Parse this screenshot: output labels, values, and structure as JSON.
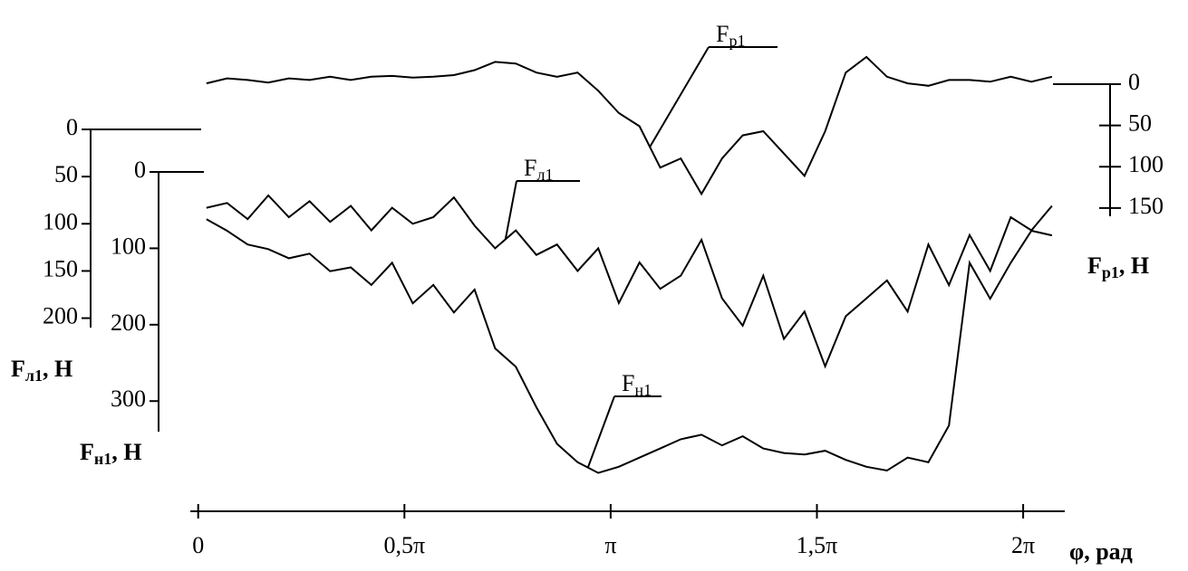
{
  "chart_data": {
    "type": "line",
    "x": [
      0.063,
      0.22,
      0.377,
      0.534,
      0.691,
      0.848,
      1.005,
      1.162,
      1.319,
      1.477,
      1.634,
      1.791,
      1.948,
      2.105,
      2.262,
      2.419,
      2.576,
      2.733,
      2.89,
      3.047,
      3.204,
      3.361,
      3.519,
      3.676,
      3.833,
      3.99,
      4.147,
      4.304,
      4.461,
      4.618,
      4.775,
      4.932,
      5.089,
      5.246,
      5.403,
      5.561,
      5.718,
      5.875,
      6.032,
      6.189,
      6.346,
      6.503
    ],
    "xlim": [
      -0.06,
      6.6
    ],
    "xticks": [
      {
        "value": 0,
        "label": "0"
      },
      {
        "value": 1.5708,
        "label": "0,5π"
      },
      {
        "value": 3.1416,
        "label": "π"
      },
      {
        "value": 4.7124,
        "label": "1,5π"
      },
      {
        "value": 6.2832,
        "label": "2π"
      }
    ],
    "xlabel": "φ, рад",
    "ylabel": "Fл1, Н",
    "ylim": [
      0,
      210
    ],
    "yticks": [
      0,
      50,
      100,
      150,
      200
    ],
    "y2label": "Fр1, Н",
    "y2lim": [
      0,
      160
    ],
    "y2ticks": [
      0,
      50,
      100,
      150
    ],
    "y3label": "Fн1, Н",
    "y3lim": [
      0,
      340
    ],
    "y3ticks": [
      0,
      100,
      200,
      300
    ],
    "y_inverted": true,
    "series": [
      {
        "name": "Fр1",
        "color": "#000000",
        "axis": "y2",
        "values": [
          -1,
          -7,
          -5,
          -2,
          -7,
          -5,
          -9,
          -5,
          -9,
          -10,
          -8,
          -9,
          -11,
          -17,
          -27,
          -25,
          -14,
          -9,
          -14,
          8,
          35,
          51,
          101,
          90,
          133,
          90,
          62,
          57,
          84,
          111,
          57,
          -14,
          -33,
          -9,
          -1,
          2,
          -5,
          -5,
          -3,
          -9,
          -3,
          -9
        ]
      },
      {
        "name": "Fл1",
        "color": "#000000",
        "axis": "y",
        "values": [
          83,
          78,
          95,
          70,
          93,
          76,
          98,
          81,
          107,
          83,
          100,
          93,
          72,
          102,
          126,
          107,
          133,
          122,
          150,
          126,
          184,
          141,
          169,
          155,
          117,
          179,
          208,
          155,
          222,
          193,
          251,
          198,
          179,
          160,
          193,
          122,
          165,
          112,
          150,
          93,
          107,
          81
        ]
      },
      {
        "name": "Fн1",
        "color": "#000000",
        "axis": "y3",
        "values": [
          62,
          77,
          95,
          101,
          113,
          107,
          130,
          125,
          148,
          119,
          172,
          148,
          184,
          154,
          231,
          255,
          308,
          356,
          380,
          394,
          386,
          374,
          362,
          350,
          344,
          358,
          346,
          362,
          368,
          370,
          365,
          377,
          386,
          391,
          374,
          380,
          332,
          119,
          166,
          119,
          77,
          83
        ]
      }
    ]
  }
}
